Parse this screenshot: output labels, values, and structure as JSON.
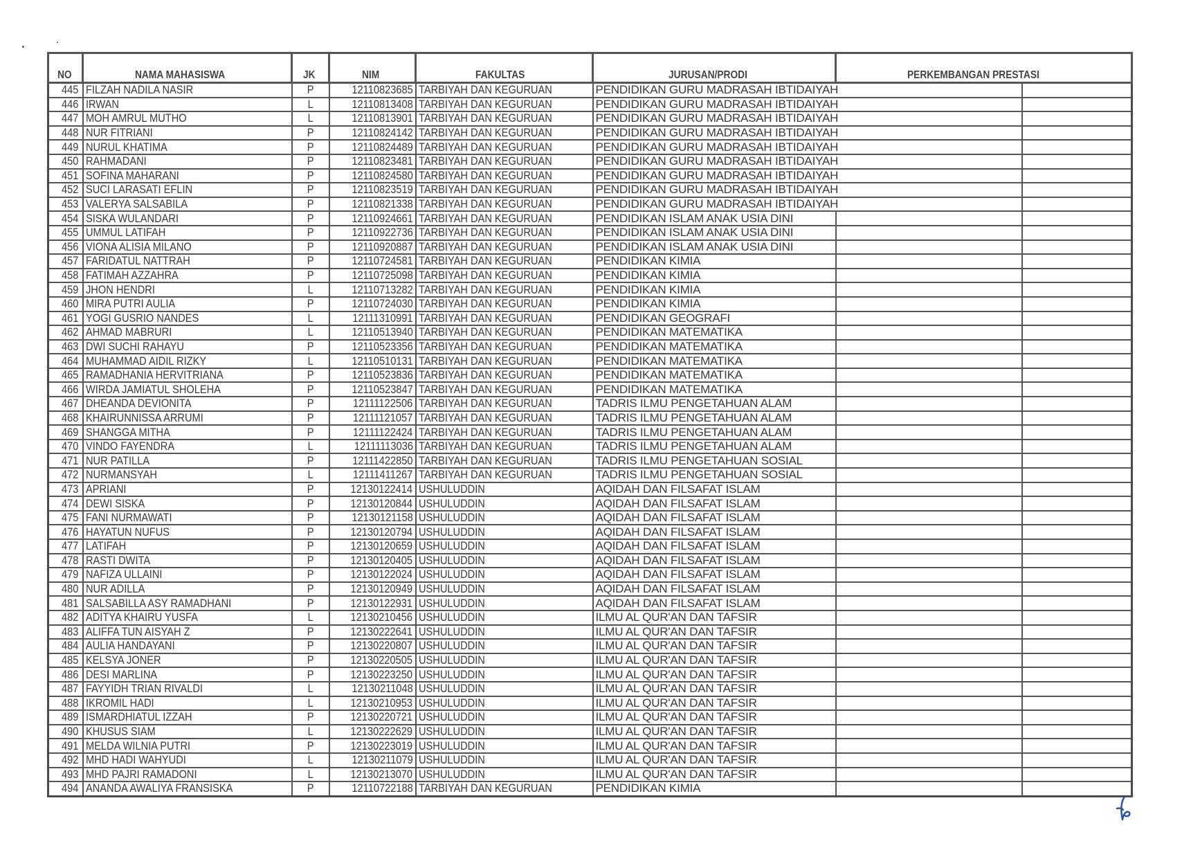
{
  "headers": {
    "no": "NO",
    "nama": "NAMA MAHASISWA",
    "jk": "JK",
    "nim": "NIM",
    "fakultas": "FAKULTAS",
    "jurusan": "JURUSAN/PRODI",
    "perkembangan": "PERKEMBANGAN PRESTASI"
  },
  "rows": [
    {
      "no": "445",
      "nama": "FILZAH NADILA NASIR",
      "jk": "P",
      "nim": "12110823685",
      "fakultas": "TARBIYAH DAN KEGURUAN",
      "jurusan": "PENDIDIKAN GURU MADRASAH IBTIDAIYAH"
    },
    {
      "no": "446",
      "nama": "IRWAN",
      "jk": "L",
      "nim": "12110813408",
      "fakultas": "TARBIYAH DAN KEGURUAN",
      "jurusan": "PENDIDIKAN GURU MADRASAH IBTIDAIYAH"
    },
    {
      "no": "447",
      "nama": "MOH AMRUL MUTHO",
      "jk": "L",
      "nim": "12110813901",
      "fakultas": "TARBIYAH DAN KEGURUAN",
      "jurusan": "PENDIDIKAN GURU MADRASAH IBTIDAIYAH"
    },
    {
      "no": "448",
      "nama": "NUR FITRIANI",
      "jk": "P",
      "nim": "12110824142",
      "fakultas": "TARBIYAH DAN KEGURUAN",
      "jurusan": "PENDIDIKAN GURU MADRASAH IBTIDAIYAH"
    },
    {
      "no": "449",
      "nama": "NURUL KHATIMA",
      "jk": "P",
      "nim": "12110824489",
      "fakultas": "TARBIYAH DAN KEGURUAN",
      "jurusan": "PENDIDIKAN GURU MADRASAH IBTIDAIYAH"
    },
    {
      "no": "450",
      "nama": "RAHMADANI",
      "jk": "P",
      "nim": "12110823481",
      "fakultas": "TARBIYAH DAN KEGURUAN",
      "jurusan": "PENDIDIKAN GURU MADRASAH IBTIDAIYAH"
    },
    {
      "no": "451",
      "nama": "SOFINA MAHARANI",
      "jk": "P",
      "nim": "12110824580",
      "fakultas": "TARBIYAH DAN KEGURUAN",
      "jurusan": "PENDIDIKAN GURU MADRASAH IBTIDAIYAH"
    },
    {
      "no": "452",
      "nama": "SUCI LARASATI EFLIN",
      "jk": "P",
      "nim": "12110823519",
      "fakultas": "TARBIYAH DAN KEGURUAN",
      "jurusan": "PENDIDIKAN GURU MADRASAH IBTIDAIYAH"
    },
    {
      "no": "453",
      "nama": "VALERYA SALSABILA",
      "jk": "P",
      "nim": "12110821338",
      "fakultas": "TARBIYAH DAN KEGURUAN",
      "jurusan": "PENDIDIKAN GURU MADRASAH IBTIDAIYAH"
    },
    {
      "no": "454",
      "nama": "SISKA WULANDARI",
      "jk": "P",
      "nim": "12110924661",
      "fakultas": "TARBIYAH DAN KEGURUAN",
      "jurusan": "PENDIDIKAN ISLAM ANAK USIA DINI"
    },
    {
      "no": "455",
      "nama": "UMMUL LATIFAH",
      "jk": "P",
      "nim": "12110922736",
      "fakultas": "TARBIYAH DAN KEGURUAN",
      "jurusan": "PENDIDIKAN ISLAM ANAK USIA DINI"
    },
    {
      "no": "456",
      "nama": "VIONA ALISIA MILANO",
      "jk": "P",
      "nim": "12110920887",
      "fakultas": "TARBIYAH DAN KEGURUAN",
      "jurusan": "PENDIDIKAN ISLAM ANAK USIA DINI"
    },
    {
      "no": "457",
      "nama": "FARIDATUL NATTRAH",
      "jk": "P",
      "nim": "12110724581",
      "fakultas": "TARBIYAH DAN KEGURUAN",
      "jurusan": "PENDIDIKAN KIMIA"
    },
    {
      "no": "458",
      "nama": "FATIMAH AZZAHRA",
      "jk": "P",
      "nim": "12110725098",
      "fakultas": "TARBIYAH DAN KEGURUAN",
      "jurusan": "PENDIDIKAN KIMIA"
    },
    {
      "no": "459",
      "nama": "JHON HENDRI",
      "jk": "L",
      "nim": "12110713282",
      "fakultas": "TARBIYAH DAN KEGURUAN",
      "jurusan": "PENDIDIKAN KIMIA"
    },
    {
      "no": "460",
      "nama": "MIRA PUTRI AULIA",
      "jk": "P",
      "nim": "12110724030",
      "fakultas": "TARBIYAH DAN KEGURUAN",
      "jurusan": "PENDIDIKAN KIMIA"
    },
    {
      "no": "461",
      "nama": "YOGI GUSRIO NANDES",
      "jk": "L",
      "nim": "12111310991",
      "fakultas": "TARBIYAH DAN KEGURUAN",
      "jurusan": "PENDIDIKAN GEOGRAFI"
    },
    {
      "no": "462",
      "nama": "AHMAD MABRURI",
      "jk": "L",
      "nim": "12110513940",
      "fakultas": "TARBIYAH DAN KEGURUAN",
      "jurusan": "PENDIDIKAN MATEMATIKA"
    },
    {
      "no": "463",
      "nama": "DWI SUCHI RAHAYU",
      "jk": "P",
      "nim": "12110523356",
      "fakultas": "TARBIYAH DAN KEGURUAN",
      "jurusan": "PENDIDIKAN MATEMATIKA"
    },
    {
      "no": "464",
      "nama": "MUHAMMAD AIDIL RIZKY",
      "jk": "L",
      "nim": "12110510131",
      "fakultas": "TARBIYAH DAN KEGURUAN",
      "jurusan": "PENDIDIKAN MATEMATIKA"
    },
    {
      "no": "465",
      "nama": "RAMADHANIA HERVITRIANA",
      "jk": "P",
      "nim": "12110523836",
      "fakultas": "TARBIYAH DAN KEGURUAN",
      "jurusan": "PENDIDIKAN MATEMATIKA"
    },
    {
      "no": "466",
      "nama": "WIRDA JAMIATUL SHOLEHA",
      "jk": "P",
      "nim": "12110523847",
      "fakultas": "TARBIYAH DAN KEGURUAN",
      "jurusan": "PENDIDIKAN MATEMATIKA"
    },
    {
      "no": "467",
      "nama": "DHEANDA DEVIONITA",
      "jk": "P",
      "nim": "12111122506",
      "fakultas": "TARBIYAH DAN KEGURUAN",
      "jurusan": "TADRIS ILMU PENGETAHUAN ALAM"
    },
    {
      "no": "468",
      "nama": "KHAIRUNNISSA ARRUMI",
      "jk": "P",
      "nim": "12111121057",
      "fakultas": "TARBIYAH DAN KEGURUAN",
      "jurusan": "TADRIS ILMU PENGETAHUAN ALAM"
    },
    {
      "no": "469",
      "nama": "SHANGGA MITHA",
      "jk": "P",
      "nim": "12111122424",
      "fakultas": "TARBIYAH DAN KEGURUAN",
      "jurusan": "TADRIS ILMU PENGETAHUAN ALAM"
    },
    {
      "no": "470",
      "nama": "VINDO FAYENDRA",
      "jk": "L",
      "nim": "12111113036",
      "fakultas": "TARBIYAH DAN KEGURUAN",
      "jurusan": "TADRIS ILMU PENGETAHUAN ALAM"
    },
    {
      "no": "471",
      "nama": "NUR PATILLA",
      "jk": "P",
      "nim": "12111422850",
      "fakultas": "TARBIYAH DAN KEGURUAN",
      "jurusan": "TADRIS ILMU PENGETAHUAN SOSIAL"
    },
    {
      "no": "472",
      "nama": "NURMANSYAH",
      "jk": "L",
      "nim": "12111411267",
      "fakultas": "TARBIYAH DAN KEGURUAN",
      "jurusan": "TADRIS ILMU PENGETAHUAN SOSIAL"
    },
    {
      "no": "473",
      "nama": "APRIANI",
      "jk": "P",
      "nim": "12130122414",
      "fakultas": "USHULUDDIN",
      "jurusan": "AQIDAH DAN FILSAFAT ISLAM"
    },
    {
      "no": "474",
      "nama": "DEWI SISKA",
      "jk": "P",
      "nim": "12130120844",
      "fakultas": "USHULUDDIN",
      "jurusan": "AQIDAH DAN FILSAFAT ISLAM"
    },
    {
      "no": "475",
      "nama": "FANI NURMAWATI",
      "jk": "P",
      "nim": "12130121158",
      "fakultas": "USHULUDDIN",
      "jurusan": "AQIDAH DAN FILSAFAT ISLAM"
    },
    {
      "no": "476",
      "nama": "HAYATUN NUFUS",
      "jk": "P",
      "nim": "12130120794",
      "fakultas": "USHULUDDIN",
      "jurusan": "AQIDAH DAN FILSAFAT ISLAM"
    },
    {
      "no": "477",
      "nama": "LATIFAH",
      "jk": "P",
      "nim": "12130120659",
      "fakultas": "USHULUDDIN",
      "jurusan": "AQIDAH DAN FILSAFAT ISLAM"
    },
    {
      "no": "478",
      "nama": "RASTI DWITA",
      "jk": "P",
      "nim": "12130120405",
      "fakultas": "USHULUDDIN",
      "jurusan": "AQIDAH DAN FILSAFAT ISLAM"
    },
    {
      "no": "479",
      "nama": "NAFIZA ULLAINI",
      "jk": "P",
      "nim": "12130122024",
      "fakultas": "USHULUDDIN",
      "jurusan": "AQIDAH DAN FILSAFAT ISLAM"
    },
    {
      "no": "480",
      "nama": "NUR ADILLA",
      "jk": "P",
      "nim": "12130120949",
      "fakultas": "USHULUDDIN",
      "jurusan": "AQIDAH DAN FILSAFAT ISLAM"
    },
    {
      "no": "481",
      "nama": "SALSABILLA ASY RAMADHANI",
      "jk": "P",
      "nim": "12130122931",
      "fakultas": "USHULUDDIN",
      "jurusan": "AQIDAH DAN FILSAFAT ISLAM"
    },
    {
      "no": "482",
      "nama": "ADITYA KHAIRU YUSFA",
      "jk": "L",
      "nim": "12130210456",
      "fakultas": "USHULUDDIN",
      "jurusan": "ILMU AL QUR'AN DAN TAFSIR"
    },
    {
      "no": "483",
      "nama": "ALIFFA TUN AISYAH Z",
      "jk": "P",
      "nim": "12130222641",
      "fakultas": "USHULUDDIN",
      "jurusan": "ILMU AL QUR'AN DAN TAFSIR"
    },
    {
      "no": "484",
      "nama": "AULIA HANDAYANI",
      "jk": "P",
      "nim": "12130220807",
      "fakultas": "USHULUDDIN",
      "jurusan": "ILMU AL QUR'AN DAN TAFSIR"
    },
    {
      "no": "485",
      "nama": "KELSYA JONER",
      "jk": "P",
      "nim": "12130220505",
      "fakultas": "USHULUDDIN",
      "jurusan": "ILMU AL QUR'AN DAN TAFSIR"
    },
    {
      "no": "486",
      "nama": "DESI MARLINA",
      "jk": "P",
      "nim": "12130223250",
      "fakultas": "USHULUDDIN",
      "jurusan": "ILMU AL QUR'AN DAN TAFSIR"
    },
    {
      "no": "487",
      "nama": "FAYYIDH TRIAN RIVALDI",
      "jk": "L",
      "nim": "12130211048",
      "fakultas": "USHULUDDIN",
      "jurusan": "ILMU AL QUR'AN DAN TAFSIR"
    },
    {
      "no": "488",
      "nama": "IKROMIL HADI",
      "jk": "L",
      "nim": "12130210953",
      "fakultas": "USHULUDDIN",
      "jurusan": "ILMU AL QUR'AN DAN TAFSIR"
    },
    {
      "no": "489",
      "nama": "ISMARDHIATUL IZZAH",
      "jk": "P",
      "nim": "12130220721",
      "fakultas": "USHULUDDIN",
      "jurusan": "ILMU AL QUR'AN DAN TAFSIR"
    },
    {
      "no": "490",
      "nama": "KHUSUS SIAM",
      "jk": "L",
      "nim": "12130222629",
      "fakultas": "USHULUDDIN",
      "jurusan": "ILMU AL QUR'AN DAN TAFSIR"
    },
    {
      "no": "491",
      "nama": "MELDA WILNIA PUTRI",
      "jk": "P",
      "nim": "12130223019",
      "fakultas": "USHULUDDIN",
      "jurusan": "ILMU AL QUR'AN DAN TAFSIR"
    },
    {
      "no": "492",
      "nama": "MHD HADI WAHYUDI",
      "jk": "L",
      "nim": "12130211079",
      "fakultas": "USHULUDDIN",
      "jurusan": "ILMU AL QUR'AN DAN TAFSIR"
    },
    {
      "no": "493",
      "nama": "MHD PAJRI RAMADONI",
      "jk": "L",
      "nim": "12130213070",
      "fakultas": "USHULUDDIN",
      "jurusan": "ILMU AL QUR'AN DAN TAFSIR"
    },
    {
      "no": "494",
      "nama": "ANANDA AWALIYA FRANSISKA",
      "jk": "P",
      "nim": "12110722188",
      "fakultas": "TARBIYAH DAN KEGURUAN",
      "jurusan": "PENDIDIKAN KIMIA"
    }
  ],
  "colors": {
    "ink": "#3a3a3a",
    "grid": "#555555",
    "signature": "#1f4fb0"
  },
  "signature_icon": "handwritten-initial"
}
